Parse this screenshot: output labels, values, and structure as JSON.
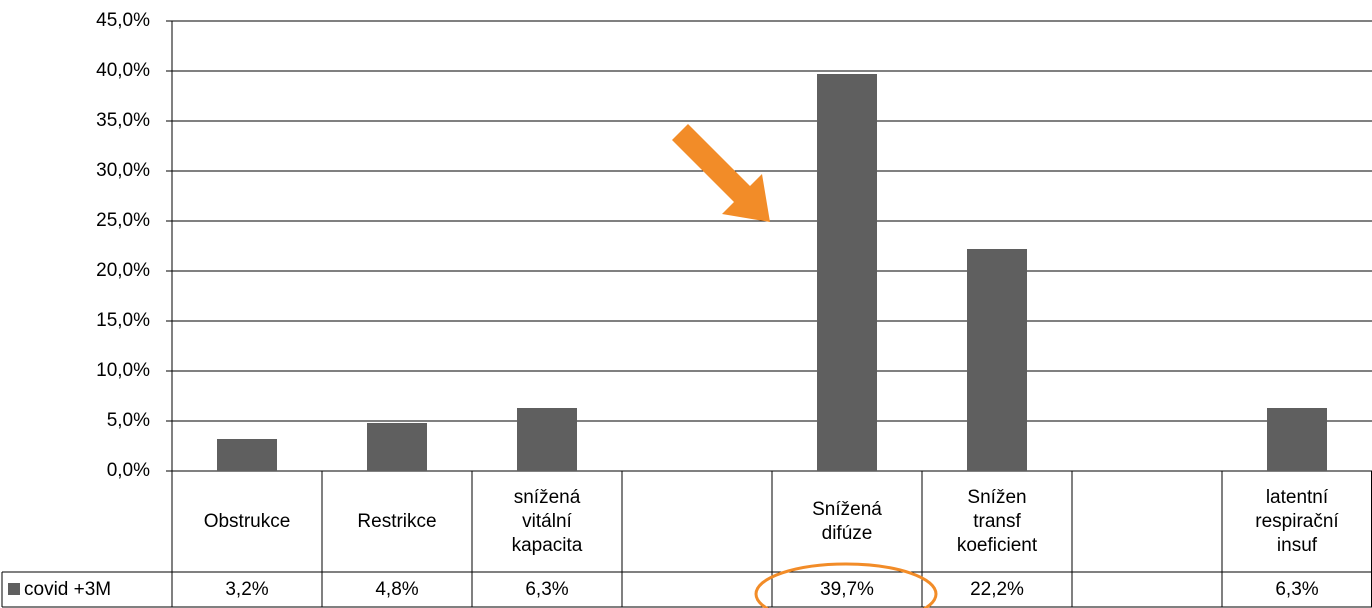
{
  "chart_data": {
    "type": "bar",
    "categories": [
      "Obstrukce",
      "Restrikce",
      "snížená\nvitální\nkapacita",
      null,
      "Snížená\ndifúze",
      "Snížen\ntransf\nkoeficient",
      null,
      "latentní\nrespirační\ninsuf"
    ],
    "series": [
      {
        "name": "covid +3M",
        "color": "#5f5f5f",
        "values": [
          3.2,
          4.8,
          6.3,
          null,
          39.7,
          22.2,
          null,
          6.3
        ],
        "value_labels": [
          "3,2%",
          "4,8%",
          "6,3%",
          null,
          "39,7%",
          "22,2%",
          null,
          "6,3%"
        ]
      }
    ],
    "ylim": [
      0,
      45
    ],
    "yticks": [
      {
        "value": 0,
        "label": "0,0%"
      },
      {
        "value": 5,
        "label": "5,0%"
      },
      {
        "value": 10,
        "label": "10,0%"
      },
      {
        "value": 15,
        "label": "15,0%"
      },
      {
        "value": 20,
        "label": "20,0%"
      },
      {
        "value": 25,
        "label": "25,0%"
      },
      {
        "value": 30,
        "label": "30,0%"
      },
      {
        "value": 35,
        "label": "35,0%"
      },
      {
        "value": 40,
        "label": "40,0%"
      },
      {
        "value": 45,
        "label": "45,0%"
      }
    ],
    "grid": true
  }
}
